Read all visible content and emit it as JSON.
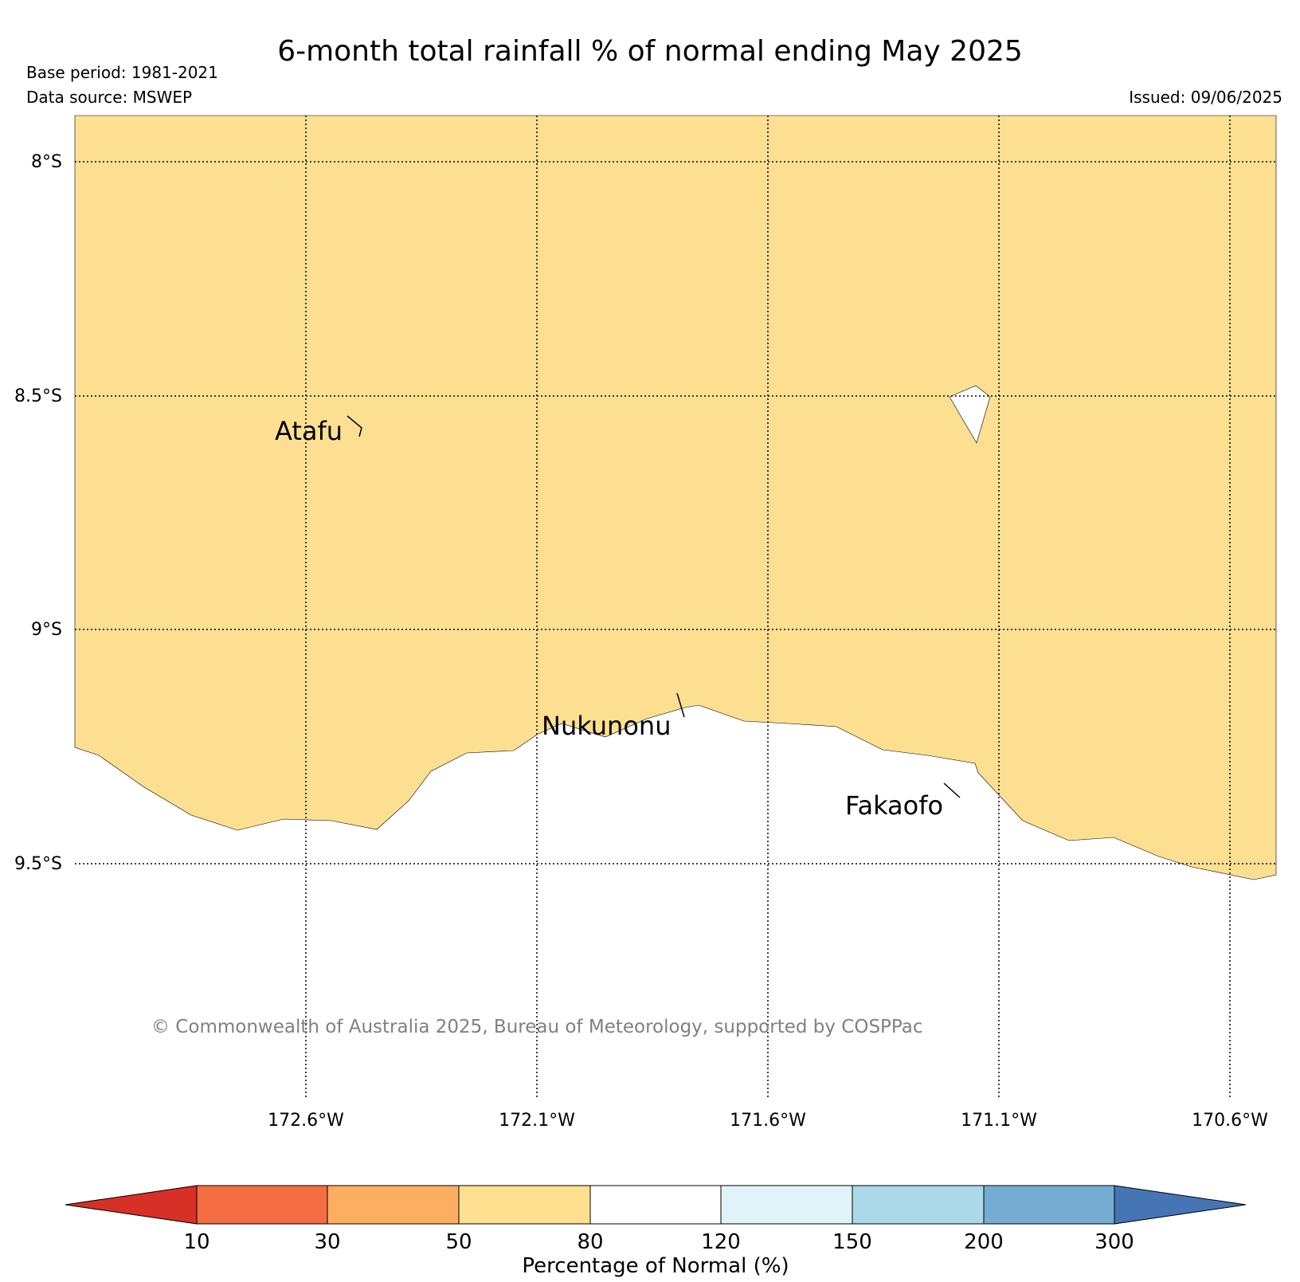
{
  "header": {
    "title": "6-month total rainfall % of normal ending May 2025",
    "base_period": "Base period: 1981-2021",
    "data_source": "Data source: MSWEP",
    "issued": "Issued: 09/06/2025"
  },
  "map": {
    "lat_labels": [
      "8°S",
      "8.5°S",
      "9°S",
      "9.5°S"
    ],
    "lon_labels": [
      "172.6°W",
      "172.1°W",
      "171.6°W",
      "171.1°W",
      "170.6°W"
    ],
    "places": [
      "Atafu",
      "Nukunonu",
      "Fakaofo"
    ],
    "copyright": "© Commonwealth of Australia 2025, Bureau of Meteorology, supported by COSPPac",
    "region_colors": {
      "dry_50_80": "#fddf92",
      "normal_80_120": "#ffffff"
    }
  },
  "legend": {
    "title": "Percentage of Normal (%)",
    "tick_labels": [
      "10",
      "30",
      "50",
      "80",
      "120",
      "150",
      "200",
      "300"
    ],
    "colors": {
      "below_10": "#d73027",
      "10_30": "#f46d43",
      "30_50": "#fdae61",
      "50_80": "#fee090",
      "80_120": "#ffffff",
      "120_150": "#e0f3f8",
      "150_200": "#abd9e9",
      "200_300": "#74add1",
      "above_300": "#4575b4"
    }
  }
}
